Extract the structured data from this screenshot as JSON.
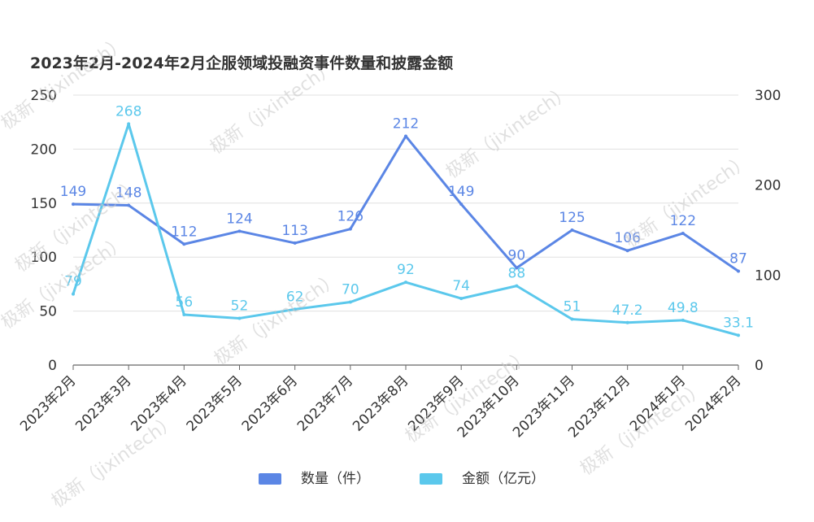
{
  "chart_data": {
    "type": "line",
    "title": "2023年2月-2024年2月企服领域投融资事件数量和披露金额",
    "categories": [
      "2023年2月",
      "2023年3月",
      "2023年4月",
      "2023年5月",
      "2023年6月",
      "2023年7月",
      "2023年8月",
      "2023年9月",
      "2023年10月",
      "2023年11月",
      "2023年12月",
      "2024年1月",
      "2024年2月"
    ],
    "series": [
      {
        "name": "数量（件）",
        "axis": "left",
        "color": "#5b86e5",
        "values": [
          149,
          148,
          112,
          124,
          113,
          126,
          212,
          149,
          90,
          125,
          106,
          122,
          87
        ],
        "labels": [
          "149",
          "148",
          "112",
          "124",
          "113",
          "126",
          "212",
          "149",
          "90",
          "125",
          "106",
          "122",
          "87"
        ]
      },
      {
        "name": "金额（亿元）",
        "axis": "right",
        "color": "#5bc8ec",
        "values": [
          79,
          268,
          56,
          52,
          62,
          70,
          92,
          74,
          88,
          51,
          47.2,
          49.8,
          33.1
        ],
        "labels": [
          "79",
          "268",
          "56",
          "52",
          "62",
          "70",
          "92",
          "74",
          "88",
          "51",
          "47.2",
          "49.8",
          "33.1"
        ]
      }
    ],
    "yleft": {
      "min": 0,
      "max": 250,
      "ticks": [
        "0",
        "50",
        "100",
        "150",
        "200",
        "250"
      ]
    },
    "yright": {
      "min": 0,
      "max": 300,
      "ticks": [
        "0",
        "100",
        "200",
        "300"
      ]
    },
    "grid": true,
    "legend_position": "bottom"
  },
  "watermark": "极新（jixintech）"
}
